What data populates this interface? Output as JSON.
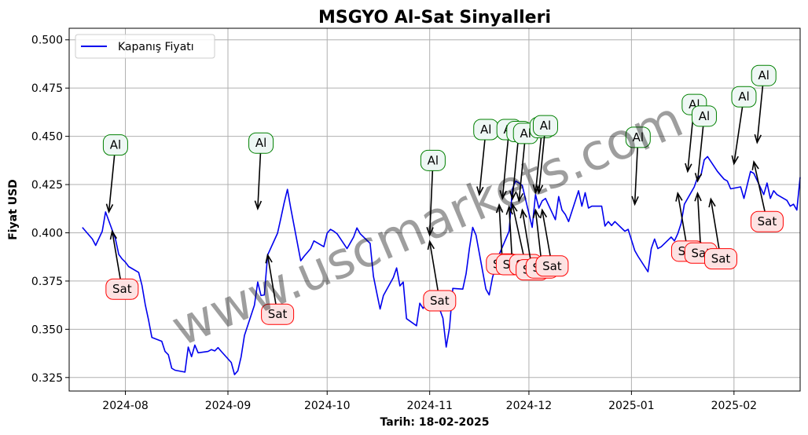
{
  "chart_data": {
    "type": "line",
    "title": "MSGYO Al-Sat Sinyalleri",
    "xlabel": "Tarih: 18-02-2025",
    "ylabel": "Fiyat USD",
    "ylim": [
      0.318,
      0.506
    ],
    "xlim": [
      "2024-07-15",
      "2025-02-21"
    ],
    "grid": true,
    "legend_position": "top-left",
    "watermark": "www.uscmarkets.com",
    "x_ticks": [
      "2024-08-01",
      "2024-09-01",
      "2024-10-01",
      "2024-11-01",
      "2024-12-01",
      "2025-01-01",
      "2025-02-01"
    ],
    "x_tick_labels": [
      "2024-08",
      "2024-09",
      "2024-10",
      "2024-11",
      "2024-12",
      "2025-01",
      "2025-02"
    ],
    "y_ticks": [
      0.325,
      0.35,
      0.375,
      0.4,
      0.425,
      0.45,
      0.475,
      0.5
    ],
    "y_tick_labels": [
      "0.325",
      "0.350",
      "0.375",
      "0.400",
      "0.425",
      "0.450",
      "0.475",
      "0.500"
    ],
    "series": [
      {
        "name": "Kapanış Fiyatı",
        "color": "#0000ee",
        "points": [
          [
            "2024-07-19",
            0.4028
          ],
          [
            "2024-07-22",
            0.3968
          ],
          [
            "2024-07-23",
            0.3935
          ],
          [
            "2024-07-25",
            0.4008
          ],
          [
            "2024-07-26",
            0.4108
          ],
          [
            "2024-07-29",
            0.3968
          ],
          [
            "2024-07-30",
            0.3888
          ],
          [
            "2024-07-31",
            0.3865
          ],
          [
            "2024-08-01",
            0.3848
          ],
          [
            "2024-08-02",
            0.3825
          ],
          [
            "2024-08-05",
            0.3795
          ],
          [
            "2024-08-06",
            0.3728
          ],
          [
            "2024-08-07",
            0.3628
          ],
          [
            "2024-08-08",
            0.3548
          ],
          [
            "2024-08-09",
            0.3458
          ],
          [
            "2024-08-12",
            0.3438
          ],
          [
            "2024-08-13",
            0.3385
          ],
          [
            "2024-08-14",
            0.3368
          ],
          [
            "2024-08-15",
            0.3298
          ],
          [
            "2024-08-16",
            0.3288
          ],
          [
            "2024-08-19",
            0.3278
          ],
          [
            "2024-08-20",
            0.3408
          ],
          [
            "2024-08-21",
            0.3358
          ],
          [
            "2024-08-22",
            0.3418
          ],
          [
            "2024-08-23",
            0.3378
          ],
          [
            "2024-08-26",
            0.3385
          ],
          [
            "2024-08-27",
            0.3395
          ],
          [
            "2024-08-28",
            0.3388
          ],
          [
            "2024-08-29",
            0.3405
          ],
          [
            "2024-08-30",
            0.3385
          ],
          [
            "2024-09-02",
            0.3328
          ],
          [
            "2024-09-03",
            0.3265
          ],
          [
            "2024-09-04",
            0.3285
          ],
          [
            "2024-09-05",
            0.3358
          ],
          [
            "2024-09-06",
            0.3468
          ],
          [
            "2024-09-09",
            0.3625
          ],
          [
            "2024-09-10",
            0.3745
          ],
          [
            "2024-09-11",
            0.3675
          ],
          [
            "2024-09-12",
            0.3678
          ],
          [
            "2024-09-13",
            0.3885
          ],
          [
            "2024-09-16",
            0.3998
          ],
          [
            "2024-09-17",
            0.4075
          ],
          [
            "2024-09-18",
            0.4155
          ],
          [
            "2024-09-19",
            0.4225
          ],
          [
            "2024-09-20",
            0.4128
          ],
          [
            "2024-09-23",
            0.3855
          ],
          [
            "2024-09-24",
            0.3878
          ],
          [
            "2024-09-25",
            0.3898
          ],
          [
            "2024-09-26",
            0.3918
          ],
          [
            "2024-09-27",
            0.3958
          ],
          [
            "2024-09-30",
            0.3928
          ],
          [
            "2024-10-01",
            0.3998
          ],
          [
            "2024-10-02",
            0.4018
          ],
          [
            "2024-10-03",
            0.4008
          ],
          [
            "2024-10-04",
            0.3995
          ],
          [
            "2024-10-07",
            0.3918
          ],
          [
            "2024-10-08",
            0.3948
          ],
          [
            "2024-10-09",
            0.3978
          ],
          [
            "2024-10-10",
            0.4025
          ],
          [
            "2024-10-11",
            0.3995
          ],
          [
            "2024-10-14",
            0.3945
          ],
          [
            "2024-10-15",
            0.3775
          ],
          [
            "2024-10-16",
            0.3688
          ],
          [
            "2024-10-17",
            0.3605
          ],
          [
            "2024-10-18",
            0.3675
          ],
          [
            "2024-10-21",
            0.3768
          ],
          [
            "2024-10-22",
            0.3818
          ],
          [
            "2024-10-23",
            0.3725
          ],
          [
            "2024-10-24",
            0.3745
          ],
          [
            "2024-10-25",
            0.3555
          ],
          [
            "2024-10-28",
            0.3518
          ],
          [
            "2024-10-29",
            0.3635
          ],
          [
            "2024-10-30",
            0.3608
          ],
          [
            "2024-10-31",
            0.3638
          ],
          [
            "2024-11-01",
            0.3678
          ],
          [
            "2024-11-04",
            0.3605
          ],
          [
            "2024-11-05",
            0.3558
          ],
          [
            "2024-11-06",
            0.3408
          ],
          [
            "2024-11-07",
            0.3508
          ],
          [
            "2024-11-08",
            0.3712
          ],
          [
            "2024-11-11",
            0.3708
          ],
          [
            "2024-11-12",
            0.3788
          ],
          [
            "2024-11-13",
            0.3918
          ],
          [
            "2024-11-14",
            0.4028
          ],
          [
            "2024-11-15",
            0.3988
          ],
          [
            "2024-11-18",
            0.3708
          ],
          [
            "2024-11-19",
            0.3678
          ],
          [
            "2024-11-20",
            0.3768
          ],
          [
            "2024-11-21",
            0.3828
          ],
          [
            "2024-11-22",
            0.3888
          ],
          [
            "2024-11-25",
            0.4008
          ],
          [
            "2024-11-26",
            0.4228
          ],
          [
            "2024-11-27",
            0.4268
          ],
          [
            "2024-11-28",
            0.4258
          ],
          [
            "2024-11-29",
            0.4245
          ],
          [
            "2024-12-02",
            0.4028
          ],
          [
            "2024-12-03",
            0.4198
          ],
          [
            "2024-12-04",
            0.4128
          ],
          [
            "2024-12-05",
            0.4165
          ],
          [
            "2024-12-06",
            0.4178
          ],
          [
            "2024-12-09",
            0.4068
          ],
          [
            "2024-12-10",
            0.4188
          ],
          [
            "2024-12-11",
            0.4118
          ],
          [
            "2024-12-12",
            0.4095
          ],
          [
            "2024-12-13",
            0.4058
          ],
          [
            "2024-12-16",
            0.4218
          ],
          [
            "2024-12-17",
            0.4138
          ],
          [
            "2024-12-18",
            0.4208
          ],
          [
            "2024-12-19",
            0.4128
          ],
          [
            "2024-12-20",
            0.4138
          ],
          [
            "2024-12-23",
            0.4138
          ],
          [
            "2024-12-24",
            0.4035
          ],
          [
            "2024-12-25",
            0.4058
          ],
          [
            "2024-12-26",
            0.4038
          ],
          [
            "2024-12-27",
            0.4058
          ],
          [
            "2024-12-30",
            0.4008
          ],
          [
            "2024-12-31",
            0.4018
          ],
          [
            "2025-01-02",
            0.3908
          ],
          [
            "2025-01-03",
            0.3878
          ],
          [
            "2025-01-06",
            0.3798
          ],
          [
            "2025-01-07",
            0.3918
          ],
          [
            "2025-01-08",
            0.3968
          ],
          [
            "2025-01-09",
            0.3918
          ],
          [
            "2025-01-10",
            0.3928
          ],
          [
            "2025-01-13",
            0.3978
          ],
          [
            "2025-01-14",
            0.3958
          ],
          [
            "2025-01-15",
            0.3995
          ],
          [
            "2025-01-16",
            0.4048
          ],
          [
            "2025-01-17",
            0.4148
          ],
          [
            "2025-01-20",
            0.4238
          ],
          [
            "2025-01-21",
            0.4288
          ],
          [
            "2025-01-22",
            0.4298
          ],
          [
            "2025-01-23",
            0.4378
          ],
          [
            "2025-01-24",
            0.4395
          ],
          [
            "2025-01-27",
            0.4318
          ],
          [
            "2025-01-28",
            0.4298
          ],
          [
            "2025-01-29",
            0.4278
          ],
          [
            "2025-01-30",
            0.4268
          ],
          [
            "2025-01-31",
            0.4228
          ],
          [
            "2025-02-03",
            0.4238
          ],
          [
            "2025-02-04",
            0.4178
          ],
          [
            "2025-02-05",
            0.4248
          ],
          [
            "2025-02-06",
            0.4318
          ],
          [
            "2025-02-07",
            0.4308
          ],
          [
            "2025-02-10",
            0.4198
          ],
          [
            "2025-02-11",
            0.4258
          ],
          [
            "2025-02-12",
            0.4178
          ],
          [
            "2025-02-13",
            0.4218
          ],
          [
            "2025-02-14",
            0.4198
          ],
          [
            "2025-02-17",
            0.4168
          ],
          [
            "2025-02-18",
            0.4138
          ],
          [
            "2025-02-19",
            0.4148
          ],
          [
            "2025-02-20",
            0.4118
          ],
          [
            "2025-02-21",
            0.4288
          ]
        ]
      }
    ],
    "signals": [
      {
        "label": "Al",
        "kind": "buy",
        "x": "2024-07-27",
        "y": 0.4108,
        "label_x": "2024-07-29",
        "label_y": 0.4455
      },
      {
        "label": "Sat",
        "kind": "sell",
        "x": "2024-07-28",
        "y": 0.4008,
        "label_x": "2024-07-31",
        "label_y": 0.3708
      },
      {
        "label": "Al",
        "kind": "buy",
        "x": "2024-09-10",
        "y": 0.4125,
        "label_x": "2024-09-11",
        "label_y": 0.4465
      },
      {
        "label": "Sat",
        "kind": "sell",
        "x": "2024-09-13",
        "y": 0.3885,
        "label_x": "2024-09-16",
        "label_y": 0.3578
      },
      {
        "label": "Al",
        "kind": "buy",
        "x": "2024-11-01",
        "y": 0.3988,
        "label_x": "2024-11-02",
        "label_y": 0.4375
      },
      {
        "label": "Sat",
        "kind": "sell",
        "x": "2024-11-01",
        "y": 0.3955,
        "label_x": "2024-11-04",
        "label_y": 0.3648
      },
      {
        "label": "Al",
        "kind": "buy",
        "x": "2024-11-16",
        "y": 0.4198,
        "label_x": "2024-11-18",
        "label_y": 0.4535
      },
      {
        "label": "Sat",
        "kind": "sell",
        "x": "2024-11-22",
        "y": 0.4145,
        "label_x": "2024-11-23",
        "label_y": 0.3838
      },
      {
        "label": "Al",
        "kind": "buy",
        "x": "2024-11-23",
        "y": 0.4178,
        "label_x": "2024-11-25",
        "label_y": 0.4535
      },
      {
        "label": "Sat",
        "kind": "sell",
        "x": "2024-11-25",
        "y": 0.4135,
        "label_x": "2024-11-26",
        "label_y": 0.3835
      },
      {
        "label": "Al",
        "kind": "buy",
        "x": "2024-11-26",
        "y": 0.4175,
        "label_x": "2024-11-28",
        "label_y": 0.4525
      },
      {
        "label": "Sat",
        "kind": "sell",
        "x": "2024-11-26",
        "y": 0.4148,
        "label_x": "2024-11-30",
        "label_y": 0.3835
      },
      {
        "label": "Al",
        "kind": "buy",
        "x": "2024-11-28",
        "y": 0.4165,
        "label_x": "2024-11-30",
        "label_y": 0.4515
      },
      {
        "label": "Sat",
        "kind": "sell",
        "x": "2024-11-29",
        "y": 0.4118,
        "label_x": "2024-12-02",
        "label_y": 0.3808
      },
      {
        "label": "Al",
        "kind": "buy",
        "x": "2024-12-03",
        "y": 0.4208,
        "label_x": "2024-12-05",
        "label_y": 0.4545
      },
      {
        "label": "Sat",
        "kind": "sell",
        "x": "2024-12-03",
        "y": 0.4118,
        "label_x": "2024-12-05",
        "label_y": 0.3818
      },
      {
        "label": "Al",
        "kind": "buy",
        "x": "2024-12-04",
        "y": 0.4208,
        "label_x": "2024-12-06",
        "label_y": 0.4555
      },
      {
        "label": "Sat",
        "kind": "sell",
        "x": "2024-12-05",
        "y": 0.4118,
        "label_x": "2024-12-08",
        "label_y": 0.3828
      },
      {
        "label": "Al",
        "kind": "buy",
        "x": "2025-01-02",
        "y": 0.4148,
        "label_x": "2025-01-03",
        "label_y": 0.4495
      },
      {
        "label": "Sat",
        "kind": "sell",
        "x": "2025-01-15",
        "y": 0.4205,
        "label_x": "2025-01-18",
        "label_y": 0.3905
      },
      {
        "label": "Al",
        "kind": "buy",
        "x": "2025-01-18",
        "y": 0.4318,
        "label_x": "2025-01-20",
        "label_y": 0.4665
      },
      {
        "label": "Sat",
        "kind": "sell",
        "x": "2025-01-21",
        "y": 0.4205,
        "label_x": "2025-01-22",
        "label_y": 0.3895
      },
      {
        "label": "Al",
        "kind": "buy",
        "x": "2025-01-21",
        "y": 0.4268,
        "label_x": "2025-01-23",
        "label_y": 0.4605
      },
      {
        "label": "Sat",
        "kind": "sell",
        "x": "2025-01-25",
        "y": 0.4175,
        "label_x": "2025-01-28",
        "label_y": 0.3865
      },
      {
        "label": "Al",
        "kind": "buy",
        "x": "2025-02-01",
        "y": 0.4358,
        "label_x": "2025-02-04",
        "label_y": 0.4705
      },
      {
        "label": "Sat",
        "kind": "sell",
        "x": "2025-02-07",
        "y": 0.4368,
        "label_x": "2025-02-11",
        "label_y": 0.4058
      },
      {
        "label": "Al",
        "kind": "buy",
        "x": "2025-02-08",
        "y": 0.4468,
        "label_x": "2025-02-10",
        "label_y": 0.4815
      }
    ],
    "colors": {
      "line": "#0000ee",
      "buy_edge": "#008000",
      "buy_fill": "#eef7f4",
      "sell_edge": "#ff0000",
      "sell_fill": "#fde2e2",
      "grid": "#b0b0b0"
    }
  }
}
